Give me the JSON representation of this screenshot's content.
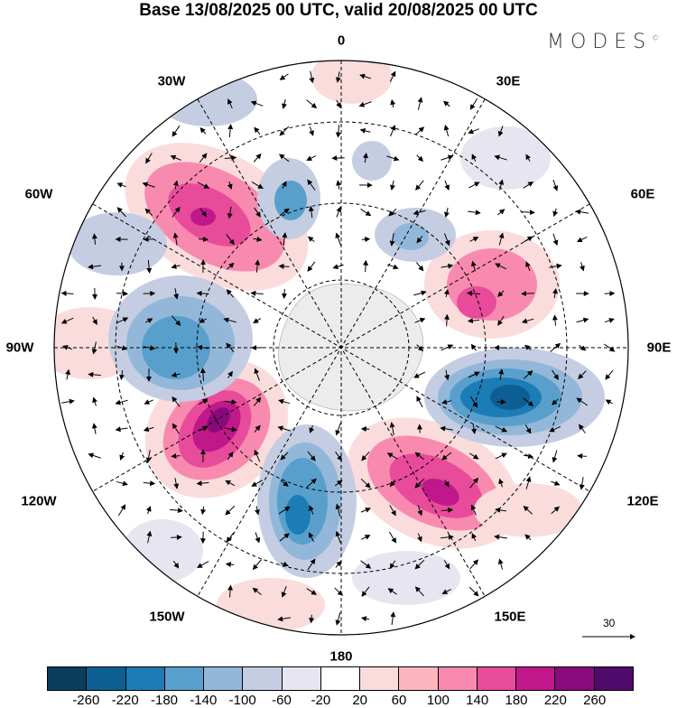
{
  "title": "Base 13/08/2025 00 UTC, valid 20/08/2025 00 UTC",
  "logo": "MODES",
  "logo_mark": "©",
  "longitude_labels": {
    "l0": "0",
    "l30e": "30E",
    "l60e": "60E",
    "l90e": "90E",
    "l120e": "120E",
    "l150e": "150E",
    "l180": "180",
    "l150w": "150W",
    "l120w": "120W",
    "l90w": "90W",
    "l60w": "60W",
    "l30w": "30W"
  },
  "vector_scale_label": "30",
  "colorbar": {
    "colors": [
      "#0b3d5c",
      "#0d5f93",
      "#1c7cb6",
      "#58a0cb",
      "#93b7d9",
      "#c4cde2",
      "#e7e5f0",
      "#ffffff",
      "#fbdcdc",
      "#fbb7bd",
      "#f88aaf",
      "#e84b9a",
      "#c0188a",
      "#890a7a",
      "#4e0b6b"
    ],
    "ticks": [
      "-260",
      "-220",
      "-180",
      "-140",
      "-100",
      "-60",
      "-20",
      "20",
      "60",
      "100",
      "140",
      "180",
      "220",
      "260"
    ]
  }
}
